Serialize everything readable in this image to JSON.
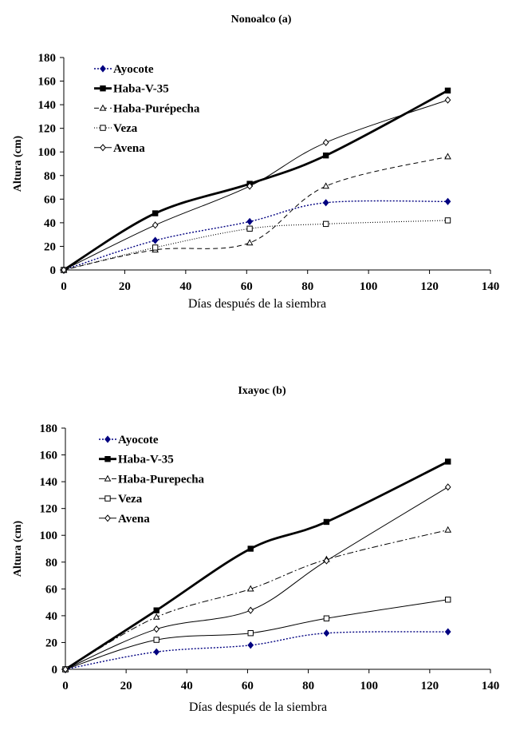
{
  "chart_data": [
    {
      "type": "line",
      "title": "Nonoalco (a)",
      "xlabel": "Días después de la siembra",
      "ylabel": "Altura (cm)",
      "xlim": [
        0,
        140
      ],
      "ylim": [
        0,
        180
      ],
      "xticks": [
        0,
        20,
        40,
        60,
        80,
        100,
        120,
        140
      ],
      "yticks": [
        0,
        20,
        40,
        60,
        80,
        100,
        120,
        140,
        160,
        180
      ],
      "grid": false,
      "legend_position": "top-left",
      "series": [
        {
          "name": "Ayocote",
          "x": [
            0,
            30,
            61,
            86,
            126
          ],
          "y": [
            0,
            25,
            41,
            57,
            58
          ],
          "marker": "diamond-filled",
          "line": "dotted",
          "color": "#000080"
        },
        {
          "name": "Haba-V-35",
          "x": [
            0,
            30,
            61,
            86,
            126
          ],
          "y": [
            0,
            48,
            73,
            97,
            152
          ],
          "marker": "square-filled",
          "line": "solid-bold",
          "color": "#000000"
        },
        {
          "name": "Haba-Purépecha",
          "x": [
            0,
            30,
            61,
            86,
            126
          ],
          "y": [
            0,
            17,
            23,
            71,
            96
          ],
          "marker": "triangle-open",
          "line": "dashed",
          "color": "#000000"
        },
        {
          "name": "Veza",
          "x": [
            0,
            30,
            61,
            86,
            126
          ],
          "y": [
            0,
            19,
            35,
            39,
            42
          ],
          "marker": "square-open",
          "line": "dotted-fine",
          "color": "#000000"
        },
        {
          "name": "Avena",
          "x": [
            0,
            30,
            61,
            86,
            126
          ],
          "y": [
            0,
            38,
            71,
            108,
            144
          ],
          "marker": "diamond-open",
          "line": "solid-thin",
          "color": "#000000"
        }
      ]
    },
    {
      "type": "line",
      "title": "Ixayoc (b)",
      "xlabel": "Días después de la siembra",
      "ylabel": "Altura (cm)",
      "xlim": [
        0,
        140
      ],
      "ylim": [
        0,
        180
      ],
      "xticks": [
        0,
        20,
        40,
        60,
        80,
        100,
        120,
        140
      ],
      "yticks": [
        0,
        20,
        40,
        60,
        80,
        100,
        120,
        140,
        160,
        180
      ],
      "grid": false,
      "legend_position": "top-left",
      "series": [
        {
          "name": "Ayocote",
          "x": [
            0,
            30,
            61,
            86,
            126
          ],
          "y": [
            0,
            13,
            18,
            27,
            28
          ],
          "marker": "diamond-filled",
          "line": "dotted",
          "color": "#000080"
        },
        {
          "name": "Haba-V-35",
          "x": [
            0,
            30,
            61,
            86,
            126
          ],
          "y": [
            0,
            44,
            90,
            110,
            155
          ],
          "marker": "square-filled",
          "line": "solid-bold",
          "color": "#000000"
        },
        {
          "name": "Haba-Purepecha",
          "x": [
            0,
            30,
            61,
            86,
            126
          ],
          "y": [
            0,
            39,
            60,
            82,
            104
          ],
          "marker": "triangle-open",
          "line": "dashdot",
          "color": "#000000"
        },
        {
          "name": "Veza",
          "x": [
            0,
            30,
            61,
            86,
            126
          ],
          "y": [
            0,
            22,
            27,
            38,
            52
          ],
          "marker": "square-open",
          "line": "solid-thin",
          "color": "#000000"
        },
        {
          "name": "Avena",
          "x": [
            0,
            30,
            61,
            86,
            126
          ],
          "y": [
            0,
            30,
            44,
            81,
            136
          ],
          "marker": "diamond-open",
          "line": "solid-thin",
          "color": "#000000"
        }
      ]
    }
  ]
}
